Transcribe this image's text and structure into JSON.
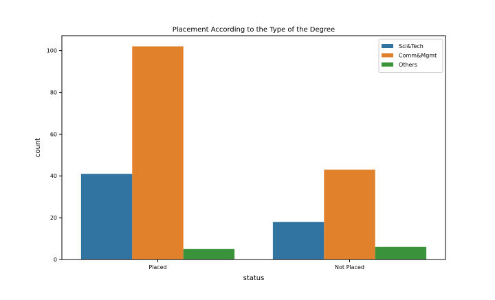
{
  "chart_data": {
    "type": "bar",
    "title": "Placement According to the Type of the Degree",
    "xlabel": "status",
    "ylabel": "count",
    "categories": [
      "Placed",
      "Not Placed"
    ],
    "series": [
      {
        "name": "Sci&Tech",
        "values": [
          41,
          18
        ],
        "color": "#3274a1"
      },
      {
        "name": "Comm&Mgmt",
        "values": [
          102,
          43
        ],
        "color": "#e1812c"
      },
      {
        "name": "Others",
        "values": [
          5,
          6
        ],
        "color": "#3a923a"
      }
    ],
    "ylim": [
      0,
      107.1
    ],
    "yticks": [
      0,
      20,
      40,
      60,
      80,
      100
    ],
    "grid": false,
    "legend_position": "top-right"
  }
}
